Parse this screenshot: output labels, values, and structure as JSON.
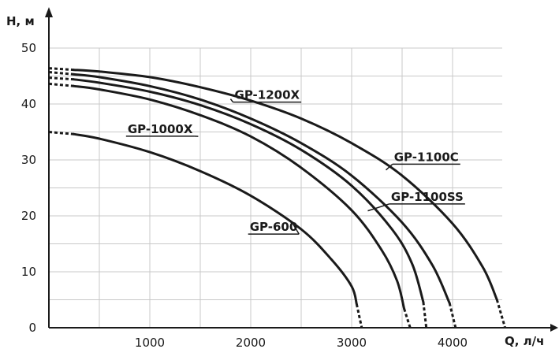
{
  "chart_data": {
    "type": "line",
    "title": "",
    "xlabel": "Q, л/ч",
    "ylabel": "H, м",
    "xlim": [
      0,
      5000
    ],
    "ylim": [
      0,
      50
    ],
    "xticks": [
      1000,
      2000,
      3000,
      4000
    ],
    "xtick_labels": [
      "1000",
      "2000",
      "3000",
      "4000"
    ],
    "yticks": [
      0,
      10,
      20,
      30,
      40,
      50
    ],
    "ytick_labels": [
      "0",
      "10",
      "20",
      "30",
      "40",
      "50"
    ],
    "grid": true,
    "legend": "labels on curves",
    "line_color": "#1a1a1a",
    "grid_color": "#c8c8c8",
    "series": [
      {
        "name": "GP-600",
        "label_at": [
          1990,
          17.3
        ],
        "leader_to": [
          2420,
          18.5
        ],
        "dashed_start": [
          [
            0,
            35.0
          ],
          [
            250,
            34.6
          ]
        ],
        "points": [
          [
            250,
            34.6
          ],
          [
            500,
            33.8
          ],
          [
            1000,
            31.4
          ],
          [
            1500,
            28.0
          ],
          [
            2000,
            23.6
          ],
          [
            2500,
            17.6
          ],
          [
            2800,
            12.2
          ],
          [
            3000,
            7.4
          ],
          [
            3050,
            4.2
          ]
        ],
        "dashed_end": [
          [
            3050,
            4.2
          ],
          [
            3100,
            0
          ]
        ]
      },
      {
        "name": "GP-1000X",
        "label_at": [
          780,
          34.8
        ],
        "leader_to": [
          1480,
          34.2
        ],
        "dashed_start": [
          [
            0,
            43.6
          ],
          [
            250,
            43.2
          ]
        ],
        "points": [
          [
            250,
            43.2
          ],
          [
            500,
            42.6
          ],
          [
            1000,
            40.8
          ],
          [
            1500,
            38.0
          ],
          [
            2000,
            34.2
          ],
          [
            2500,
            28.6
          ],
          [
            3000,
            21.0
          ],
          [
            3300,
            13.8
          ],
          [
            3450,
            8.4
          ],
          [
            3520,
            3.4
          ]
        ],
        "dashed_end": [
          [
            3520,
            3.4
          ],
          [
            3580,
            0
          ]
        ]
      },
      {
        "name": "GP-1200X",
        "label_at": [
          1840,
          40.9
        ],
        "leader_to": [
          1800,
          40.9
        ],
        "dashed_start": [
          [
            0,
            44.7
          ],
          [
            250,
            44.4
          ]
        ],
        "points": [
          [
            250,
            44.4
          ],
          [
            500,
            43.8
          ],
          [
            1000,
            42.2
          ],
          [
            1500,
            39.8
          ],
          [
            2000,
            36.4
          ],
          [
            2500,
            31.8
          ],
          [
            3000,
            25.4
          ],
          [
            3400,
            17.6
          ],
          [
            3600,
            11.4
          ],
          [
            3710,
            4.6
          ]
        ],
        "dashed_end": [
          [
            3710,
            4.6
          ],
          [
            3740,
            0
          ]
        ]
      },
      {
        "name": "GP-1100SS",
        "label_at": [
          3390,
          22.7
        ],
        "leader_to": [
          3160,
          20.9
        ],
        "dashed_start": [
          [
            0,
            45.7
          ],
          [
            250,
            45.3
          ]
        ],
        "points": [
          [
            250,
            45.3
          ],
          [
            500,
            44.8
          ],
          [
            1000,
            43.2
          ],
          [
            1500,
            40.8
          ],
          [
            2000,
            37.4
          ],
          [
            2500,
            33.0
          ],
          [
            3000,
            27.2
          ],
          [
            3500,
            18.8
          ],
          [
            3800,
            11.2
          ],
          [
            3970,
            4.4
          ]
        ],
        "dashed_end": [
          [
            3970,
            4.4
          ],
          [
            4030,
            0
          ]
        ]
      },
      {
        "name": "GP-1100C",
        "label_at": [
          3420,
          29.8
        ],
        "leader_to": [
          3340,
          28.2
        ],
        "dashed_start": [
          [
            0,
            46.4
          ],
          [
            250,
            46.1
          ]
        ],
        "points": [
          [
            250,
            46.1
          ],
          [
            500,
            45.8
          ],
          [
            1000,
            44.8
          ],
          [
            1500,
            43.0
          ],
          [
            2000,
            40.6
          ],
          [
            2500,
            37.4
          ],
          [
            3000,
            33.0
          ],
          [
            3500,
            27.2
          ],
          [
            4000,
            18.6
          ],
          [
            4300,
            10.8
          ],
          [
            4440,
            5.0
          ]
        ],
        "dashed_end": [
          [
            4440,
            5.0
          ],
          [
            4520,
            0
          ]
        ]
      }
    ]
  }
}
